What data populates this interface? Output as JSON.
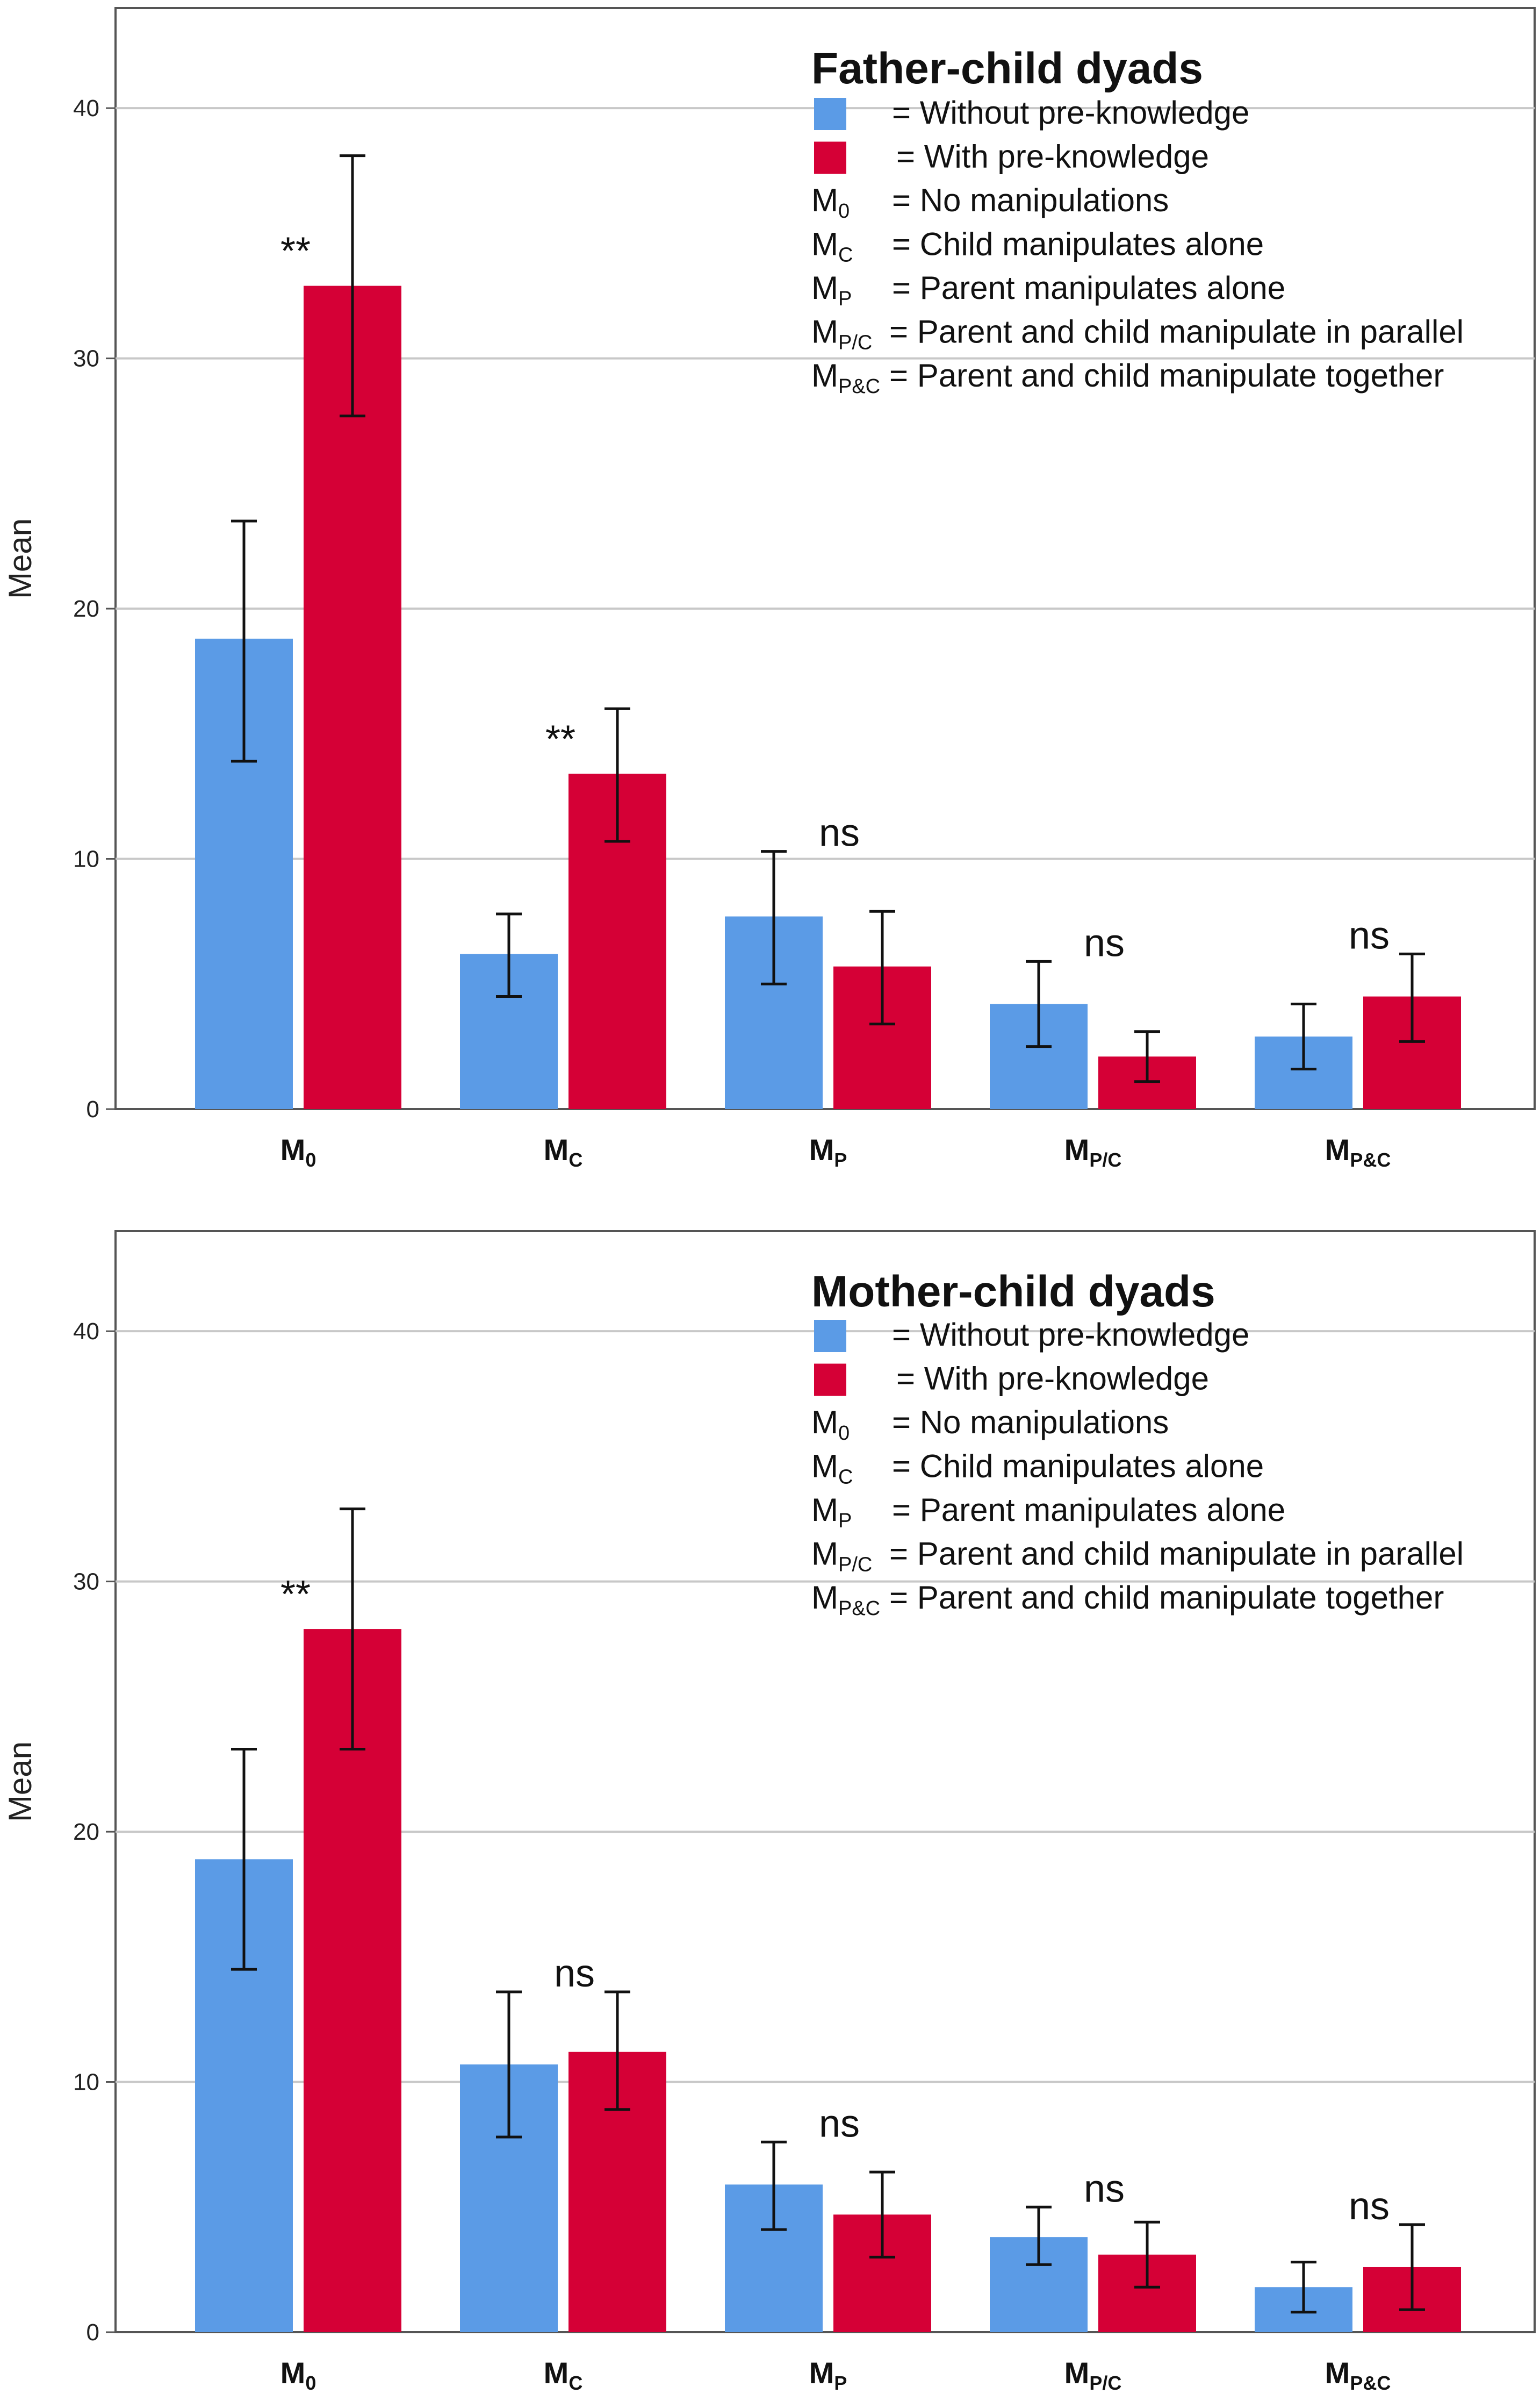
{
  "chart_data": [
    {
      "type": "bar",
      "title": "Father-child dyads",
      "ylabel": "Mean",
      "xlabel": "",
      "ylim": [
        0,
        44
      ],
      "yticks": [
        0,
        10,
        20,
        30,
        40
      ],
      "grid": true,
      "legend_position": "top-right",
      "categories": [
        {
          "main": "M",
          "sub": "0"
        },
        {
          "main": "M",
          "sub": "C"
        },
        {
          "main": "M",
          "sub": "P"
        },
        {
          "main": "M",
          "sub": "P/C"
        },
        {
          "main": "M",
          "sub": "P&C"
        }
      ],
      "series": [
        {
          "name": "Without pre-knowledge",
          "color": "#5b9be6",
          "values": [
            18.8,
            6.2,
            7.7,
            4.2,
            2.9
          ],
          "err_low": [
            13.9,
            4.5,
            5.0,
            2.5,
            1.6
          ],
          "err_high": [
            23.5,
            7.8,
            10.3,
            5.9,
            4.2
          ]
        },
        {
          "name": "With pre-knowledge",
          "color": "#d50036",
          "values": [
            32.9,
            13.4,
            5.7,
            2.1,
            4.5
          ],
          "err_low": [
            27.7,
            10.7,
            3.4,
            1.1,
            2.7
          ],
          "err_high": [
            38.1,
            16.0,
            7.9,
            3.1,
            6.2
          ]
        }
      ],
      "annotations": [
        "**",
        "**",
        "ns",
        "ns",
        "ns"
      ],
      "legend_rows": [
        {
          "kind": "swatch",
          "series": 0,
          "text": "= Without pre-knowledge"
        },
        {
          "kind": "swatch",
          "series": 1,
          "text": "= With pre-knowledge"
        },
        {
          "kind": "code",
          "main": "M",
          "sub": "0",
          "text": "= No manipulations"
        },
        {
          "kind": "code",
          "main": "M",
          "sub": "C",
          "text": "= Child manipulates alone"
        },
        {
          "kind": "code",
          "main": "M",
          "sub": "P",
          "text": "= Parent manipulates alone"
        },
        {
          "kind": "code",
          "main": "M",
          "sub": "P/C",
          "text": "= Parent and child manipulate in parallel"
        },
        {
          "kind": "code",
          "main": "M",
          "sub": "P&C",
          "text": "= Parent and child manipulate together"
        }
      ]
    },
    {
      "type": "bar",
      "title": "Mother-child dyads",
      "ylabel": "Mean",
      "xlabel": "",
      "ylim": [
        0,
        44
      ],
      "yticks": [
        0,
        10,
        20,
        30,
        40
      ],
      "grid": true,
      "legend_position": "top-right",
      "categories": [
        {
          "main": "M",
          "sub": "0"
        },
        {
          "main": "M",
          "sub": "C"
        },
        {
          "main": "M",
          "sub": "P"
        },
        {
          "main": "M",
          "sub": "P/C"
        },
        {
          "main": "M",
          "sub": "P&C"
        }
      ],
      "series": [
        {
          "name": "Without pre-knowledge",
          "color": "#5b9be6",
          "values": [
            18.9,
            10.7,
            5.9,
            3.8,
            1.8
          ],
          "err_low": [
            14.5,
            7.8,
            4.1,
            2.7,
            0.8
          ],
          "err_high": [
            23.3,
            13.6,
            7.6,
            5.0,
            2.8
          ]
        },
        {
          "name": "With pre-knowledge",
          "color": "#d50036",
          "values": [
            28.1,
            11.2,
            4.7,
            3.1,
            2.6
          ],
          "err_low": [
            23.3,
            8.9,
            3.0,
            1.8,
            0.9
          ],
          "err_high": [
            32.9,
            13.6,
            6.4,
            4.4,
            4.3
          ]
        }
      ],
      "annotations": [
        "**",
        "ns",
        "ns",
        "ns",
        "ns"
      ],
      "legend_rows": [
        {
          "kind": "swatch",
          "series": 0,
          "text": "= Without pre-knowledge"
        },
        {
          "kind": "swatch",
          "series": 1,
          "text": "= With pre-knowledge"
        },
        {
          "kind": "code",
          "main": "M",
          "sub": "0",
          "text": "= No manipulations"
        },
        {
          "kind": "code",
          "main": "M",
          "sub": "C",
          "text": "= Child manipulates alone"
        },
        {
          "kind": "code",
          "main": "M",
          "sub": "P",
          "text": "= Parent manipulates alone"
        },
        {
          "kind": "code",
          "main": "M",
          "sub": "P/C",
          "text": "= Parent and child manipulate in parallel"
        },
        {
          "kind": "code",
          "main": "M",
          "sub": "P&C",
          "text": "= Parent and child manipulate together"
        }
      ]
    }
  ]
}
